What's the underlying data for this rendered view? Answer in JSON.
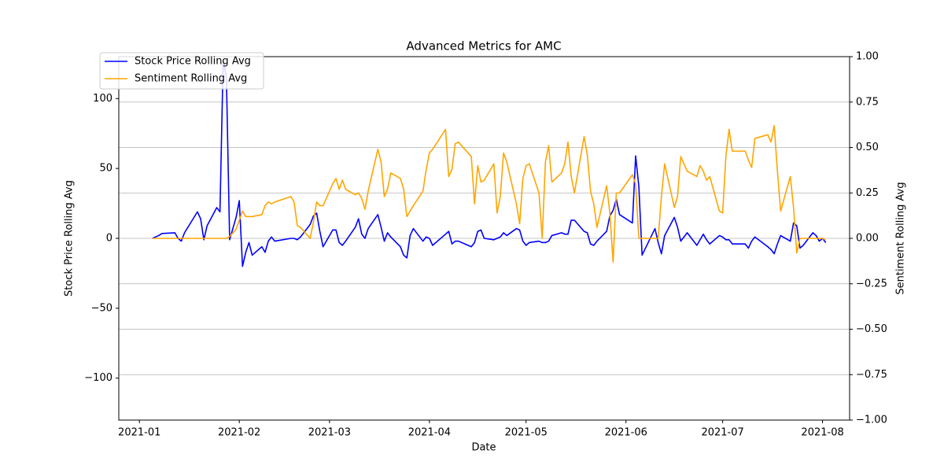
{
  "chart_data": {
    "type": "line",
    "title": "Advanced Metrics for AMC",
    "x_label": "Date",
    "y_label": "Stock Price Rolling Avg",
    "y2_label": "Sentiment Rolling Avg",
    "x": [
      4,
      6,
      7,
      11,
      12,
      13,
      14,
      18,
      19,
      20,
      21,
      24,
      25,
      26,
      27,
      28,
      30,
      31,
      32,
      33,
      34,
      35,
      38,
      39,
      40,
      41,
      42,
      47,
      48,
      49,
      50,
      53,
      54,
      55,
      56,
      57,
      60,
      61,
      62,
      63,
      64,
      67,
      68,
      69,
      70,
      71,
      74,
      75,
      76,
      77,
      78,
      81,
      82,
      83,
      84,
      85,
      88,
      89,
      90,
      91,
      95,
      96,
      97,
      98,
      99,
      102,
      103,
      104,
      105,
      106,
      107,
      110,
      111,
      112,
      113,
      114,
      117,
      118,
      119,
      120,
      121,
      124,
      125,
      126,
      127,
      128,
      131,
      132,
      133,
      134,
      135,
      138,
      139,
      140,
      141,
      142,
      145,
      146,
      147,
      148,
      149,
      153,
      154,
      155,
      156,
      160,
      161,
      162,
      163,
      166,
      167,
      168,
      169,
      170,
      173,
      174,
      175,
      176,
      177,
      180,
      181,
      182,
      183,
      184,
      188,
      189,
      190,
      191,
      195,
      196,
      197,
      198,
      199,
      202,
      203,
      204,
      205,
      206,
      209,
      210,
      211,
      212,
      213
    ],
    "series": [
      {
        "name": "Stock Price Rolling Avg",
        "color": "#0000ff",
        "axis": "y",
        "values": [
          0,
          2,
          3.5,
          4,
          0,
          -2,
          4,
          19,
          14,
          -1,
          9,
          22,
          19,
          128,
          115,
          -1,
          15,
          27,
          -20,
          -10,
          -3,
          -12,
          -6,
          -10,
          -2,
          1,
          -2,
          0,
          0,
          -1,
          1,
          10,
          16,
          18,
          5,
          -6,
          6,
          6,
          -3,
          -5,
          -2,
          8,
          14,
          3,
          0,
          7,
          17,
          8,
          -2,
          4,
          1,
          -6,
          -12,
          -14,
          2,
          7,
          -2,
          1,
          0,
          -5,
          3,
          5,
          -4,
          -2,
          -2,
          -5,
          -6,
          -3,
          5,
          6,
          0,
          -1,
          0,
          1,
          4,
          2,
          7,
          6,
          -2,
          -5,
          -3,
          -2,
          -3,
          -3,
          -2,
          2,
          4,
          3,
          3,
          13,
          13,
          5,
          4,
          -4,
          -5,
          -2,
          5,
          16,
          20,
          28,
          17,
          11,
          59,
          37,
          -12,
          7,
          -3,
          -11,
          2,
          15,
          8,
          -2,
          1,
          4,
          -5,
          -1,
          3,
          -1,
          -4,
          2,
          1,
          -1,
          -1,
          -4,
          -4,
          -7,
          -2,
          1,
          -6,
          -8,
          -11,
          -4,
          2,
          -2,
          11,
          9,
          -7,
          -5,
          4,
          2,
          -2,
          0,
          -3
        ]
      },
      {
        "name": "Sentiment Rolling Avg",
        "color": "#ffa500",
        "axis": "y2",
        "values": [
          0,
          0,
          0,
          0,
          0,
          0,
          0,
          0,
          0,
          0,
          0,
          0,
          0,
          0,
          0,
          0.01,
          0.05,
          0.1,
          0.15,
          0.12,
          0.12,
          0.12,
          0.13,
          0.18,
          0.2,
          0.19,
          0.2,
          0.23,
          0.2,
          0.07,
          0.06,
          0,
          0.09,
          0.2,
          0.18,
          0.18,
          0.3,
          0.33,
          0.27,
          0.32,
          0.27,
          0.24,
          0.25,
          0.22,
          0.16,
          0.26,
          0.49,
          0.42,
          0.23,
          0.27,
          0.36,
          0.33,
          0.27,
          0.12,
          0.15,
          0.18,
          0.26,
          0.38,
          0.47,
          0.49,
          0.6,
          0.34,
          0.38,
          0.52,
          0.53,
          0.47,
          0.45,
          0.19,
          0.4,
          0.31,
          0.32,
          0.41,
          0.14,
          0.23,
          0.47,
          0.42,
          0.19,
          0.08,
          0.33,
          0.4,
          0.41,
          0.25,
          0,
          0.42,
          0.51,
          0.31,
          0.36,
          0.41,
          0.53,
          0.34,
          0.25,
          0.56,
          0.46,
          0.26,
          0.19,
          0.06,
          0.29,
          0.14,
          -0.13,
          0.25,
          0.25,
          0.35,
          0.3,
          0,
          0,
          0,
          0,
          0.23,
          0.41,
          0.17,
          0.23,
          0.45,
          0.41,
          0.37,
          0.34,
          0.4,
          0.37,
          0.32,
          0.34,
          0.15,
          0.14,
          0.45,
          0.6,
          0.48,
          0.48,
          0.43,
          0.39,
          0.55,
          0.57,
          0.53,
          0.62,
          0.37,
          0.15,
          0.34,
          0.17,
          -0.08,
          0,
          0,
          0,
          0,
          0,
          0,
          -0.01
        ]
      }
    ],
    "xlim": [
      -6.4,
      220.4
    ],
    "xticks": [
      {
        "value": 0,
        "label": "2021-01"
      },
      {
        "value": 31,
        "label": "2021-02"
      },
      {
        "value": 59,
        "label": "2021-03"
      },
      {
        "value": 90,
        "label": "2021-04"
      },
      {
        "value": 120,
        "label": "2021-05"
      },
      {
        "value": 151,
        "label": "2021-06"
      },
      {
        "value": 181,
        "label": "2021-07"
      },
      {
        "value": 212,
        "label": "2021-08"
      }
    ],
    "ylim": [
      -130,
      130
    ],
    "yticks": [
      {
        "value": -100,
        "label": "−100"
      },
      {
        "value": -50,
        "label": "−50"
      },
      0,
      50,
      100
    ],
    "y2lim": [
      -1,
      1
    ],
    "y2ticks": [
      {
        "value": -1,
        "label": "−1.00"
      },
      {
        "value": -0.75,
        "label": "−0.75"
      },
      {
        "value": -0.5,
        "label": "−0.50"
      },
      {
        "value": -0.25,
        "label": "−0.25"
      },
      {
        "value": 0,
        "label": "0.00"
      },
      {
        "value": 0.25,
        "label": "0.25"
      },
      {
        "value": 0.5,
        "label": "0.50"
      },
      {
        "value": 0.75,
        "label": "0.75"
      },
      {
        "value": 1,
        "label": "1.00"
      }
    ],
    "grid": "y2",
    "legend": "upper left"
  }
}
